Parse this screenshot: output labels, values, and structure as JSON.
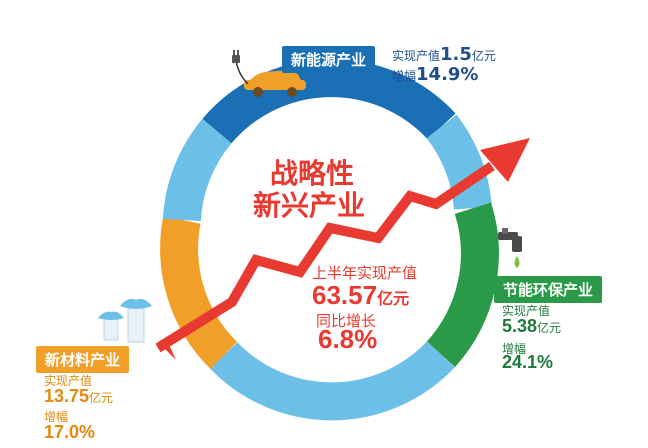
{
  "center": {
    "title_line1": "战略性",
    "title_line2": "新兴产业",
    "subtitle": "上半年实现产值",
    "total_value": "63.57",
    "total_unit": "亿元",
    "growth_label": "同比增长",
    "growth_value": "6.8%"
  },
  "sectors": {
    "new_energy": {
      "name": "新能源产业",
      "output_label": "实现产值",
      "output_value": "1.5",
      "output_unit": "亿元",
      "growth_label": "增幅",
      "growth_value": "14.9%"
    },
    "energy_saving": {
      "name": "节能环保产业",
      "output_label": "实现产值",
      "output_value": "5.38",
      "output_unit": "亿元",
      "growth_label": "增幅",
      "growth_value": "24.1%"
    },
    "new_materials": {
      "name": "新材料产业",
      "output_label": "实现产值",
      "output_value": "13.75",
      "output_unit": "亿元",
      "growth_label": "增幅",
      "growth_value": "17.0%"
    }
  },
  "colors": {
    "dark_blue": "#1a6fb5",
    "light_blue": "#6cc0e8",
    "green": "#2a9a48",
    "orange": "#f0a028",
    "red": "#e83a30",
    "dark_text": "#1f4e8c"
  },
  "icons": {
    "car": "electric-car-icon",
    "faucet": "water-faucet-icon",
    "materials": "material-caps-icon"
  }
}
